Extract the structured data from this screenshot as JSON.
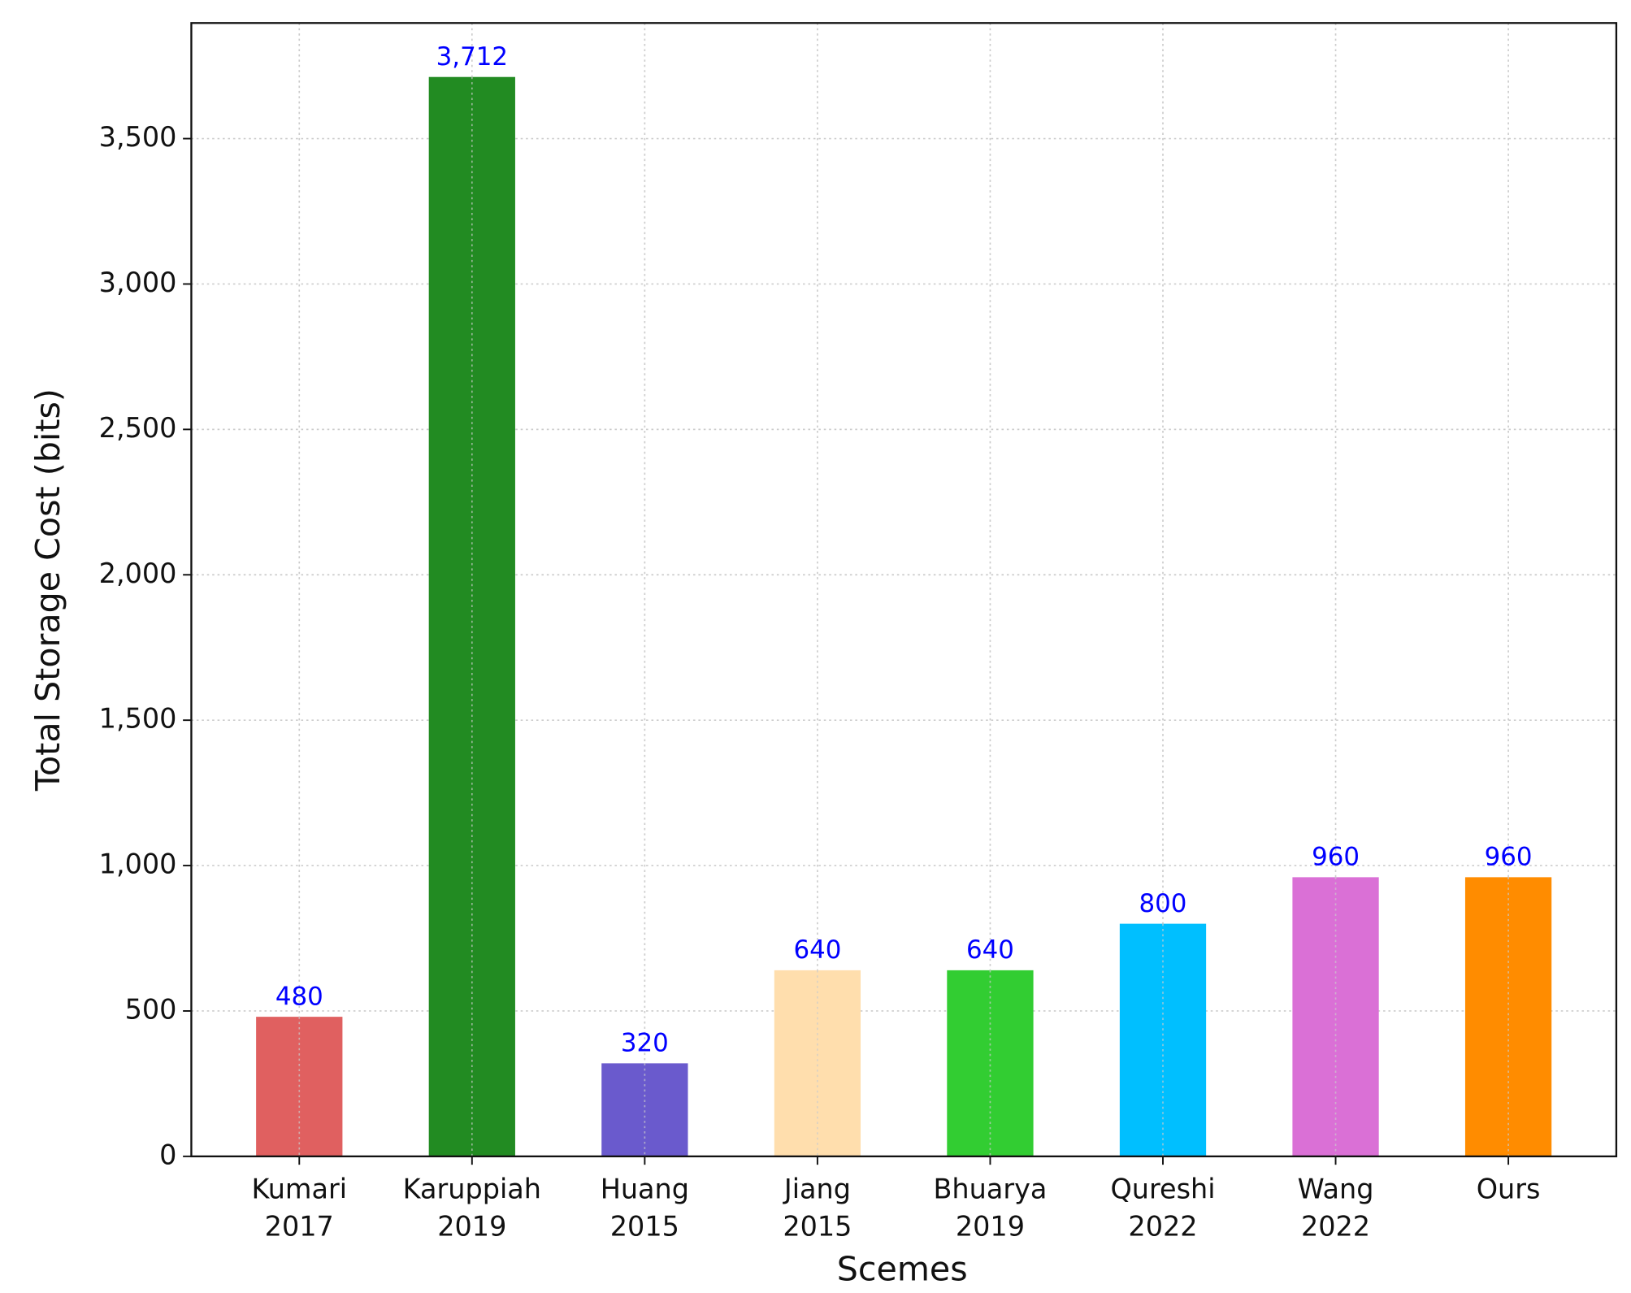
{
  "chart_data": {
    "type": "bar",
    "x_label": "Scemes",
    "y_label": "Total Storage Cost (bits)",
    "categories": [
      "Kumari\n2017",
      "Karuppiah\n2019",
      "Huang\n2015",
      "Jiang\n2015",
      "Bhuarya\n2019",
      "Qureshi\n2022",
      "Wang\n2022",
      "Ours"
    ],
    "values": [
      480,
      3712,
      320,
      640,
      640,
      800,
      960,
      960
    ],
    "value_labels": [
      "480",
      "3,712",
      "320",
      "640",
      "640",
      "800",
      "960",
      "960"
    ],
    "colors": [
      "#e06060",
      "#228b22",
      "#6a5acd",
      "#ffdead",
      "#32cd32",
      "#00bfff",
      "#da70d6",
      "#ff8c00"
    ],
    "value_label_color": "#0000ff",
    "ylim": [
      0,
      3897.6
    ],
    "yticks": [
      0,
      {
        "value": 500,
        "label": "500"
      },
      {
        "value": 1000,
        "label": "1,000"
      },
      {
        "value": 1500,
        "label": "1,500"
      },
      {
        "value": 2000,
        "label": "2,000"
      },
      {
        "value": 2500,
        "label": "2,500"
      },
      {
        "value": 3000,
        "label": "3,000"
      },
      {
        "value": 3500,
        "label": "3,500"
      }
    ],
    "grid": true
  }
}
